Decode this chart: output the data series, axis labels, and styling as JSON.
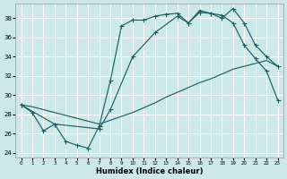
{
  "xlabel": "Humidex (Indice chaleur)",
  "background_color": "#cce8e8",
  "grid_color": "#ffffff",
  "line_color": "#1a6060",
  "xlim": [
    -0.5,
    23.5
  ],
  "ylim": [
    23.5,
    39.5
  ],
  "yticks": [
    24,
    26,
    28,
    30,
    32,
    34,
    36,
    38
  ],
  "xticks": [
    0,
    1,
    2,
    3,
    4,
    5,
    6,
    7,
    8,
    9,
    10,
    11,
    12,
    13,
    14,
    15,
    16,
    17,
    18,
    19,
    20,
    21,
    22,
    23
  ],
  "curve1_x": [
    0,
    1,
    2,
    3,
    4,
    5,
    6,
    7,
    8,
    9,
    10,
    11,
    12,
    13,
    14,
    15,
    16,
    17,
    18,
    19,
    20,
    21,
    22,
    23
  ],
  "curve1_y": [
    29.0,
    28.2,
    26.3,
    27.0,
    25.2,
    24.8,
    24.5,
    26.8,
    31.5,
    37.2,
    37.8,
    37.8,
    38.2,
    38.4,
    38.5,
    37.5,
    38.6,
    38.5,
    38.3,
    37.5,
    35.2,
    33.8,
    32.5,
    29.5
  ],
  "curve2_x": [
    0,
    3,
    7,
    8,
    10,
    12,
    14,
    15,
    16,
    17,
    18,
    19,
    20,
    21,
    22,
    23
  ],
  "curve2_y": [
    29.0,
    27.0,
    26.5,
    28.5,
    34.0,
    36.5,
    38.2,
    37.5,
    38.8,
    38.5,
    38.0,
    39.0,
    37.5,
    35.2,
    34.0,
    33.0
  ],
  "curve3_x": [
    0,
    1,
    2,
    3,
    4,
    5,
    6,
    7,
    8,
    9,
    10,
    11,
    12,
    13,
    14,
    15,
    16,
    17,
    18,
    19,
    20,
    21,
    22,
    23
  ],
  "curve3_y": [
    29.0,
    28.8,
    28.5,
    28.2,
    27.9,
    27.6,
    27.3,
    27.0,
    27.4,
    27.8,
    28.2,
    28.7,
    29.2,
    29.8,
    30.3,
    30.8,
    31.3,
    31.7,
    32.2,
    32.7,
    33.0,
    33.3,
    33.6,
    33.0
  ]
}
